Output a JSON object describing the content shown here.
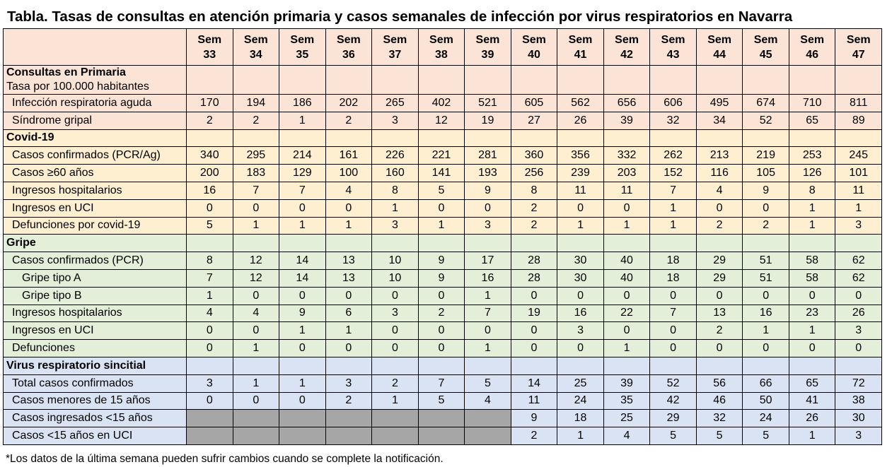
{
  "title": "Tabla. Tasas de consultas en atención primaria y casos semanales de infección por virus respiratorios en Navarra",
  "table": {
    "columns": [
      "Sem\n33",
      "Sem\n34",
      "Sem\n35",
      "Sem\n36",
      "Sem\n37",
      "Sem\n38",
      "Sem\n39",
      "Sem\n40",
      "Sem\n41",
      "Sem\n42",
      "Sem\n43",
      "Sem\n44",
      "Sem\n45",
      "Sem\n46",
      "Sem\n47"
    ],
    "sections": [
      {
        "title": "Consultas en Primaria",
        "subtitle": "Tasa por 100.000 habitantes",
        "rows": [
          {
            "label": "Infección respiratoria aguda",
            "values": [
              170,
              194,
              186,
              202,
              265,
              402,
              521,
              605,
              562,
              656,
              606,
              495,
              674,
              710,
              811
            ]
          },
          {
            "label": "Síndrome gripal",
            "values": [
              2,
              2,
              1,
              2,
              3,
              12,
              19,
              27,
              26,
              39,
              32,
              34,
              52,
              65,
              89
            ]
          }
        ]
      },
      {
        "title": "Covid-19",
        "rows": [
          {
            "label": "Casos confirmados (PCR/Ag)",
            "values": [
              340,
              295,
              214,
              161,
              226,
              221,
              281,
              360,
              356,
              332,
              262,
              213,
              219,
              253,
              245
            ]
          },
          {
            "label": "Casos ≥60 años",
            "values": [
              200,
              183,
              129,
              100,
              160,
              141,
              193,
              256,
              239,
              203,
              152,
              116,
              105,
              126,
              101
            ]
          },
          {
            "label": "Ingresos hospitalarios",
            "values": [
              16,
              7,
              7,
              4,
              8,
              5,
              9,
              8,
              11,
              11,
              7,
              4,
              9,
              8,
              11
            ]
          },
          {
            "label": "Ingresos en UCI",
            "values": [
              0,
              0,
              0,
              0,
              1,
              0,
              0,
              2,
              0,
              0,
              1,
              0,
              0,
              1,
              1
            ]
          },
          {
            "label": "Defunciones por covid-19",
            "values": [
              5,
              1,
              1,
              1,
              3,
              1,
              3,
              2,
              1,
              1,
              1,
              2,
              2,
              1,
              3
            ]
          }
        ]
      },
      {
        "title": "Gripe",
        "rows": [
          {
            "label": "Casos confirmados (PCR)",
            "values": [
              8,
              12,
              14,
              13,
              10,
              9,
              17,
              28,
              30,
              40,
              18,
              29,
              51,
              58,
              62
            ]
          },
          {
            "label": "Gripe tipo A",
            "values": [
              7,
              12,
              14,
              13,
              10,
              9,
              16,
              28,
              30,
              40,
              18,
              29,
              51,
              58,
              62
            ]
          },
          {
            "label": "Gripe tipo B",
            "values": [
              1,
              0,
              0,
              0,
              0,
              0,
              1,
              0,
              0,
              0,
              0,
              0,
              0,
              0,
              0
            ]
          },
          {
            "label": "Ingresos hospitalarios",
            "values": [
              4,
              4,
              9,
              6,
              3,
              2,
              7,
              19,
              16,
              22,
              7,
              13,
              16,
              23,
              26
            ]
          },
          {
            "label": "Ingresos en UCI",
            "values": [
              0,
              0,
              1,
              1,
              0,
              0,
              0,
              0,
              3,
              0,
              0,
              2,
              1,
              1,
              3
            ]
          },
          {
            "label": "Defunciones",
            "values": [
              0,
              1,
              0,
              0,
              0,
              0,
              1,
              0,
              0,
              1,
              0,
              0,
              0,
              0,
              0
            ]
          }
        ]
      },
      {
        "title": "Virus respiratorio sincitial",
        "rows": [
          {
            "label": "Total casos confirmados",
            "values": [
              3,
              1,
              1,
              3,
              2,
              7,
              5,
              14,
              25,
              39,
              52,
              56,
              66,
              65,
              72
            ]
          },
          {
            "label": "Casos menores de 15 años",
            "values": [
              0,
              0,
              0,
              2,
              1,
              5,
              4,
              11,
              24,
              35,
              42,
              46,
              50,
              41,
              38
            ]
          },
          {
            "label": "Casos ingresados <15 años",
            "values": [
              null,
              null,
              null,
              null,
              null,
              null,
              null,
              9,
              18,
              25,
              29,
              32,
              24,
              26,
              30
            ]
          },
          {
            "label": "Casos <15 años en UCI",
            "values": [
              null,
              null,
              null,
              null,
              null,
              null,
              null,
              2,
              1,
              4,
              5,
              5,
              5,
              1,
              3
            ]
          }
        ]
      }
    ]
  },
  "footnote": "*Los datos de la última semana pueden sufrir cambios cuando se complete la notificación."
}
